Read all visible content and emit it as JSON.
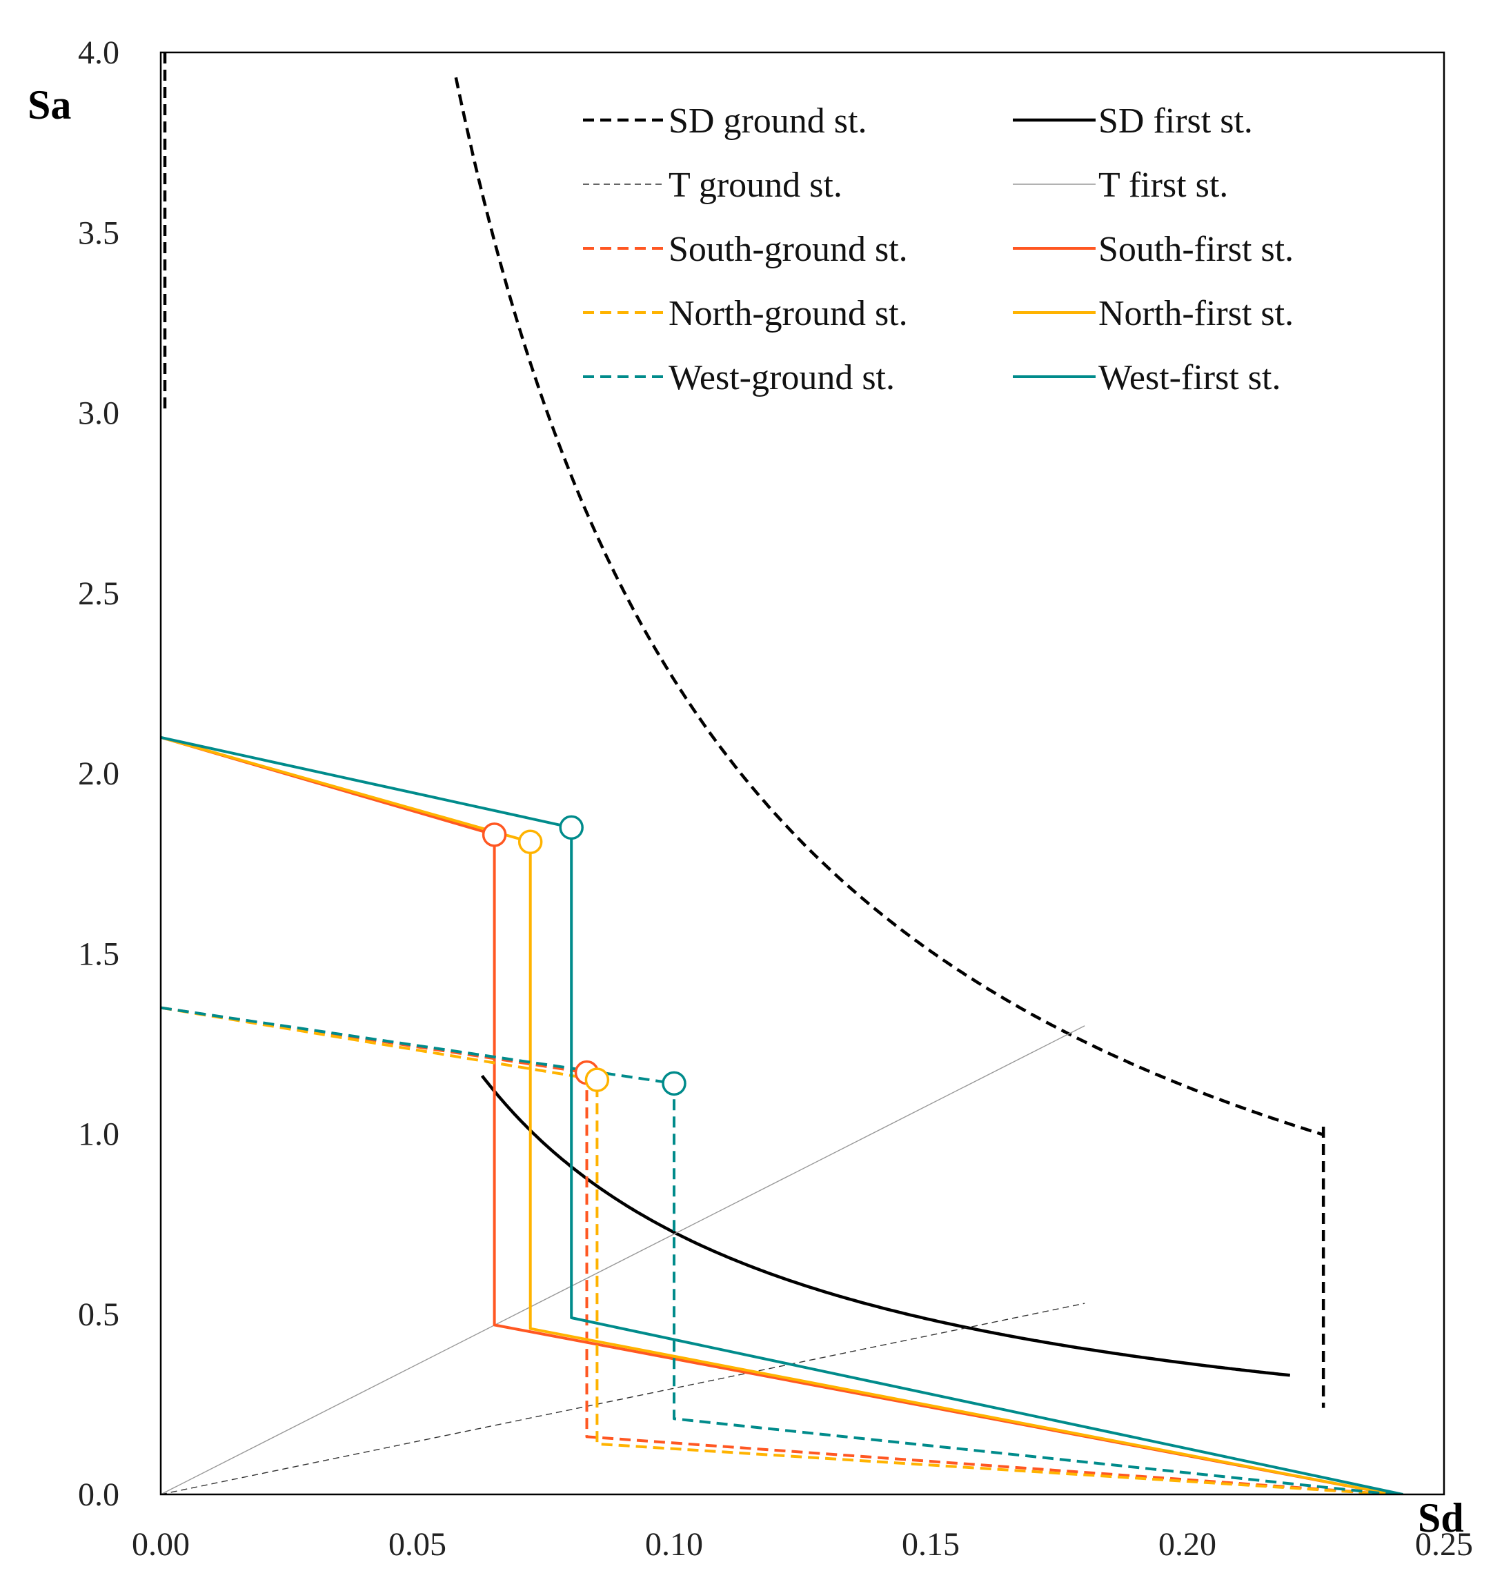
{
  "chart_data": {
    "type": "line",
    "title": "",
    "xlabel": "Sd",
    "ylabel": "Sa",
    "xlim": [
      0,
      0.25
    ],
    "ylim": [
      0,
      4.0
    ],
    "grid": false,
    "legend_position": "top-right",
    "x_ticks": [
      "0.00",
      "0.05",
      "0.10",
      "0.15",
      "0.20",
      "0.25"
    ],
    "y_ticks": [
      "0.0",
      "0.5",
      "1.0",
      "1.5",
      "2.0",
      "2.5",
      "3.0",
      "3.5",
      "4.0"
    ],
    "series": [
      {
        "name": "SD ground st.",
        "color": "#000000",
        "dash": "dashed",
        "width": "bold",
        "function": {
          "kind": "inverse",
          "k": 0.226,
          "from_x": 0.0575,
          "to_x": 0.2265
        },
        "extra_segments": [
          {
            "x": [
              0.2265,
              0.2265
            ],
            "y": [
              1.02,
              0.24
            ]
          }
        ]
      },
      {
        "name": "SD first st.",
        "color": "#000000",
        "dash": "solid",
        "width": "bold",
        "function": {
          "kind": "inverse",
          "k": 0.0727,
          "from_x": 0.0626,
          "to_x": 0.22
        }
      },
      {
        "name": "T ground st.",
        "color": "#333333",
        "dash": "dashed",
        "width": "thin",
        "x": [
          0.0,
          0.18
        ],
        "y": [
          0.0,
          0.53
        ]
      },
      {
        "name": "T first st.",
        "color": "#999999",
        "dash": "solid",
        "width": "thin",
        "x": [
          0.0,
          0.18
        ],
        "y": [
          0.0,
          1.3
        ]
      },
      {
        "name": "South-ground st.",
        "color": "#FF5722",
        "dash": "dashed",
        "width": "normal",
        "x": [
          0.0,
          0.083,
          0.083,
          0.24
        ],
        "y": [
          1.35,
          1.17,
          0.16,
          0.0
        ]
      },
      {
        "name": "South-first st.",
        "color": "#FF5722",
        "dash": "solid",
        "width": "normal",
        "x": [
          0.0,
          0.065,
          0.065,
          0.24
        ],
        "y": [
          2.1,
          1.83,
          0.47,
          0.0
        ]
      },
      {
        "name": "North-ground st.",
        "color": "#FFB300",
        "dash": "dashed",
        "width": "normal",
        "x": [
          0.0,
          0.085,
          0.085,
          0.24
        ],
        "y": [
          1.35,
          1.15,
          0.14,
          0.0
        ]
      },
      {
        "name": "North-first st.",
        "color": "#FFB300",
        "dash": "solid",
        "width": "normal",
        "x": [
          0.0,
          0.072,
          0.072,
          0.24
        ],
        "y": [
          2.1,
          1.81,
          0.46,
          0.0
        ]
      },
      {
        "name": "West-ground st.",
        "color": "#008B8B",
        "dash": "dashed",
        "width": "normal",
        "x": [
          0.0,
          0.1,
          0.1,
          0.24
        ],
        "y": [
          1.35,
          1.14,
          0.21,
          0.0
        ]
      },
      {
        "name": "West-first st.",
        "color": "#008B8B",
        "dash": "solid",
        "width": "normal",
        "x": [
          0.0,
          0.08,
          0.08,
          0.242
        ],
        "y": [
          2.1,
          1.85,
          0.49,
          0.0
        ]
      }
    ],
    "markers": [
      {
        "series": "South-first st.",
        "x": 0.065,
        "y": 1.83,
        "shape": "open-circle",
        "color": "#FF5722"
      },
      {
        "series": "North-first st.",
        "x": 0.072,
        "y": 1.81,
        "shape": "open-circle",
        "color": "#FFB300"
      },
      {
        "series": "West-first st.",
        "x": 0.08,
        "y": 1.85,
        "shape": "open-circle",
        "color": "#008B8B"
      },
      {
        "series": "South-ground st.",
        "x": 0.083,
        "y": 1.17,
        "shape": "open-circle",
        "color": "#FF5722"
      },
      {
        "series": "North-ground st.",
        "x": 0.085,
        "y": 1.15,
        "shape": "open-circle",
        "color": "#FFB300"
      },
      {
        "series": "West-ground st.",
        "x": 0.1,
        "y": 1.14,
        "shape": "open-circle",
        "color": "#008B8B"
      }
    ]
  }
}
